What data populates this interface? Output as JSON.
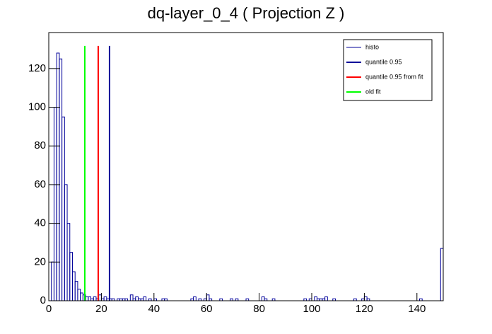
{
  "chart_data": {
    "type": "histogram",
    "title": "dq-layer_0_4 ( Projection Z )",
    "bins": [
      0,
      1,
      2,
      3,
      4,
      5,
      6,
      7,
      8,
      9,
      10,
      11,
      12,
      13,
      14,
      15,
      16,
      17,
      18,
      19,
      20,
      21,
      22,
      23,
      24,
      25,
      26,
      27,
      28,
      29,
      30,
      31,
      32,
      33,
      34,
      35,
      36,
      37,
      38,
      39,
      40,
      41,
      42,
      43,
      44,
      45,
      46,
      47,
      48,
      49,
      50,
      51,
      52,
      53,
      54,
      55,
      56,
      57,
      58,
      59,
      60,
      61,
      62,
      63,
      64,
      65,
      66,
      67,
      68,
      69,
      70,
      71,
      72,
      73,
      74,
      75,
      76,
      77,
      78,
      79,
      80,
      81,
      82,
      83,
      84,
      85,
      86,
      87,
      88,
      89,
      90,
      91,
      92,
      93,
      94,
      95,
      96,
      97,
      98,
      99,
      100,
      101,
      102,
      103,
      104,
      105,
      106,
      107,
      108,
      109,
      110,
      111,
      112,
      113,
      114,
      115,
      116,
      117,
      118,
      119,
      120,
      121,
      122,
      123,
      124,
      125,
      126,
      127,
      128,
      129,
      130,
      131,
      132,
      133,
      134,
      135,
      136,
      137,
      138,
      139,
      140,
      141,
      142,
      143,
      144,
      145,
      146,
      147,
      148,
      149,
      150
    ],
    "series": [
      {
        "name": "histo",
        "color": "#000099",
        "values": [
          0,
          20,
          100,
          128,
          125,
          95,
          60,
          40,
          25,
          15,
          10,
          6,
          4,
          3,
          2,
          2,
          1,
          2,
          1,
          3,
          1,
          2,
          1,
          1,
          1,
          0,
          1,
          1,
          1,
          1,
          0,
          3,
          1,
          2,
          1,
          1,
          2,
          0,
          1,
          0,
          1,
          0,
          0,
          1,
          1,
          0,
          0,
          0,
          0,
          0,
          0,
          0,
          0,
          0,
          1,
          2,
          0,
          1,
          0,
          1,
          3,
          1,
          0,
          0,
          0,
          1,
          0,
          0,
          0,
          1,
          0,
          1,
          0,
          0,
          0,
          1,
          0,
          0,
          0,
          0,
          0,
          2,
          1,
          0,
          0,
          1,
          0,
          0,
          0,
          0,
          0,
          0,
          0,
          0,
          0,
          0,
          0,
          1,
          0,
          1,
          0,
          2,
          1,
          1,
          1,
          2,
          0,
          0,
          1,
          0,
          0,
          0,
          0,
          0,
          0,
          0,
          1,
          0,
          0,
          1,
          2,
          1,
          0,
          0,
          0,
          0,
          0,
          0,
          0,
          0,
          0,
          0,
          0,
          0,
          0,
          0,
          0,
          0,
          0,
          0,
          0,
          1,
          0,
          0,
          0,
          0,
          0,
          0,
          0,
          27
        ]
      }
    ],
    "lines": [
      {
        "name": "quantile 0.95",
        "color": "#000099",
        "x": 23.1,
        "y": 131.7
      },
      {
        "name": "quantile 0.95 from fit",
        "color": "#ff0000",
        "x": 18.8,
        "y": 131.7
      },
      {
        "name": "old fit",
        "color": "#00ff00",
        "x": 13.7,
        "y": 131.7
      }
    ],
    "xlim": [
      0,
      150
    ],
    "xticks": [
      0,
      20,
      40,
      60,
      80,
      100,
      120,
      140
    ],
    "ylim": [
      0,
      138.6
    ],
    "yticks": [
      0,
      20,
      40,
      60,
      80,
      100,
      120
    ],
    "legend": "top-right"
  }
}
